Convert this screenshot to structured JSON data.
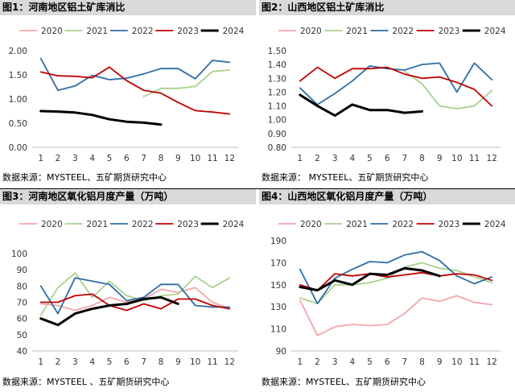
{
  "colors": {
    "2020": "#f4a6aa",
    "2021": "#a9d18e",
    "2022": "#2e6da4",
    "2023": "#c00000",
    "2024": "#000000"
  },
  "chart_data": [
    {
      "id": "fig1",
      "type": "line",
      "title": "图1：河南地区铝土矿库消比",
      "source": "数据来源：MYSTEEL、五矿期货研究中心",
      "categories": [
        "1",
        "2",
        "3",
        "4",
        "5",
        "6",
        "7",
        "8",
        "9",
        "10",
        "11",
        "12"
      ],
      "ylim": [
        0,
        2
      ],
      "yticks": [
        "0.00",
        "0.50",
        "1.00",
        "1.50",
        "2.00"
      ],
      "legend_position": "top",
      "series": [
        {
          "name": "2020",
          "values": [
            null,
            null,
            null,
            null,
            null,
            null,
            null,
            null,
            null,
            null,
            null,
            null
          ]
        },
        {
          "name": "2021",
          "values": [
            null,
            null,
            null,
            null,
            null,
            null,
            1.05,
            1.22,
            1.22,
            1.26,
            1.57,
            1.6
          ]
        },
        {
          "name": "2022",
          "values": [
            1.84,
            1.18,
            1.27,
            1.49,
            1.4,
            1.43,
            1.52,
            1.63,
            1.63,
            1.42,
            1.8,
            1.76
          ]
        },
        {
          "name": "2023",
          "values": [
            1.56,
            1.48,
            1.47,
            1.44,
            1.66,
            1.38,
            1.18,
            1.12,
            0.93,
            0.76,
            0.73,
            0.69
          ]
        },
        {
          "name": "2024",
          "values": [
            0.75,
            0.74,
            0.72,
            0.67,
            0.58,
            0.53,
            0.51,
            0.47,
            null,
            null,
            null,
            null
          ]
        }
      ]
    },
    {
      "id": "fig2",
      "type": "line",
      "title": "图2：山西地区铝土矿库消比",
      "source": "数据来源：  MYSTEEL、五矿期货研究中心",
      "categories": [
        "1",
        "2",
        "3",
        "4",
        "5",
        "6",
        "7",
        "8",
        "9",
        "10",
        "11",
        "12"
      ],
      "ylim": [
        0.8,
        1.5
      ],
      "yticks": [
        "0.80",
        "0.90",
        "1.00",
        "1.10",
        "1.20",
        "1.30",
        "1.40",
        "1.50"
      ],
      "legend_position": "top",
      "series": [
        {
          "name": "2020",
          "values": [
            null,
            null,
            null,
            null,
            null,
            null,
            null,
            null,
            null,
            null,
            null,
            null
          ]
        },
        {
          "name": "2021",
          "values": [
            null,
            null,
            null,
            null,
            null,
            null,
            1.35,
            1.26,
            1.1,
            1.08,
            1.1,
            1.21
          ]
        },
        {
          "name": "2022",
          "values": [
            1.23,
            1.11,
            1.19,
            1.28,
            1.39,
            1.37,
            1.36,
            1.4,
            1.41,
            1.2,
            1.41,
            1.29
          ]
        },
        {
          "name": "2023",
          "values": [
            1.28,
            1.38,
            1.3,
            1.37,
            1.37,
            1.38,
            1.33,
            1.3,
            1.31,
            1.27,
            1.22,
            1.1
          ]
        },
        {
          "name": "2024",
          "values": [
            1.18,
            1.1,
            1.03,
            1.11,
            1.07,
            1.07,
            1.05,
            1.06,
            null,
            null,
            null,
            null
          ]
        }
      ]
    },
    {
      "id": "fig3",
      "type": "line",
      "title": "图3：河南地区氧化铝月度产量（万吨）",
      "source": "数据来源：MYSTEEL 、五矿期货研究中心",
      "categories": [
        "1",
        "2",
        "3",
        "4",
        "5",
        "6",
        "7",
        "8",
        "9",
        "10",
        "11",
        "12"
      ],
      "ylim": [
        40,
        100
      ],
      "yticks": [
        "40",
        "50",
        "60",
        "70",
        "80",
        "90",
        "100"
      ],
      "legend_position": "top",
      "series": [
        {
          "name": "2020",
          "values": [
            69,
            68,
            65,
            68,
            73,
            70,
            72,
            78,
            76,
            79,
            70,
            66
          ]
        },
        {
          "name": "2021",
          "values": [
            62,
            79,
            88,
            73,
            83,
            74,
            71,
            74,
            75,
            86,
            79,
            85
          ]
        },
        {
          "name": "2022",
          "values": [
            80,
            63,
            85,
            83,
            81,
            71,
            73,
            81,
            81,
            68,
            67,
            67
          ]
        },
        {
          "name": "2023",
          "values": [
            70,
            70,
            74,
            75,
            68,
            65,
            69,
            66,
            72,
            72,
            68,
            66
          ]
        },
        {
          "name": "2024",
          "values": [
            60,
            56,
            63,
            66,
            68,
            69,
            72,
            73,
            69,
            null,
            null,
            null
          ]
        }
      ]
    },
    {
      "id": "fig4",
      "type": "line",
      "title": "图4：山西地区氧化铝月度产量（万吨）",
      "source": "数据来源：MYSTEEL、五矿期货研究中心",
      "categories": [
        "1",
        "2",
        "3",
        "4",
        "5",
        "6",
        "7",
        "8",
        "9",
        "10",
        "11",
        "12"
      ],
      "ylim": [
        90,
        190
      ],
      "yticks": [
        "90",
        "110",
        "130",
        "150",
        "170",
        "190"
      ],
      "legend_position": "top",
      "series": [
        {
          "name": "2020",
          "values": [
            136,
            104,
            112,
            114,
            113,
            114,
            124,
            138,
            135,
            140,
            134,
            132
          ]
        },
        {
          "name": "2021",
          "values": [
            138,
            133,
            150,
            150,
            152,
            156,
            166,
            170,
            165,
            163,
            157,
            152
          ]
        },
        {
          "name": "2022",
          "values": [
            164,
            133,
            156,
            164,
            171,
            170,
            177,
            180,
            172,
            158,
            151,
            157
          ]
        },
        {
          "name": "2023",
          "values": [
            150,
            145,
            160,
            158,
            160,
            157,
            159,
            161,
            158,
            160,
            159,
            154
          ]
        },
        {
          "name": "2024",
          "values": [
            148,
            145,
            154,
            150,
            160,
            159,
            165,
            163,
            158,
            null,
            null,
            null
          ]
        }
      ]
    }
  ]
}
